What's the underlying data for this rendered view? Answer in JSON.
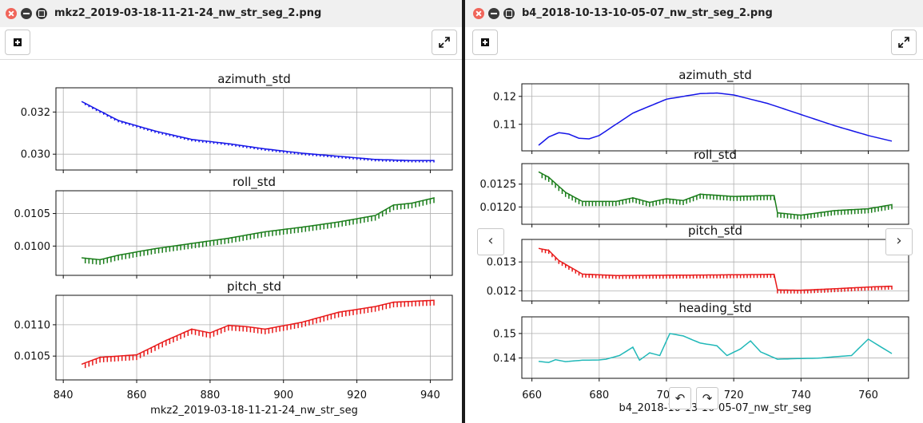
{
  "windows": [
    {
      "title": "mkz2_2019-03-18-11-21-24_nw_str_seg_2.png",
      "xlabel": "mkz2_2019-03-18-11-21-24_nw_str_seg",
      "xaxis": {
        "range": [
          838,
          946
        ],
        "ticks": [
          840,
          860,
          880,
          900,
          920,
          940
        ]
      },
      "subplots": [
        {
          "title": "azimuth_std",
          "color": "#1515e8",
          "ylim": [
            0.02925,
            0.03315
          ],
          "yticks": [
            0.03,
            0.032
          ],
          "ytick_labels": [
            "0.030",
            "0.032"
          ]
        },
        {
          "title": "roll_std",
          "color": "#1a7d1a",
          "ylim": [
            0.00955,
            0.01085
          ],
          "yticks": [
            0.01,
            0.0105
          ],
          "ytick_labels": [
            "0.0100",
            "0.0105"
          ]
        },
        {
          "title": "pitch_std",
          "color": "#e81a1a",
          "ylim": [
            0.01012,
            0.01147
          ],
          "yticks": [
            0.0105,
            0.011
          ],
          "ytick_labels": [
            "0.0105",
            "0.0110"
          ]
        }
      ]
    },
    {
      "title": "b4_2018-10-13-10-05-07_nw_str_seg_2.png",
      "xlabel": "b4_2018-10-13-10-05-07_nw_str_seg",
      "xaxis": {
        "range": [
          657,
          772
        ],
        "ticks": [
          660,
          680,
          700,
          720,
          740,
          760
        ]
      },
      "subplots": [
        {
          "title": "azimuth_std",
          "color": "#1515e8",
          "ylim": [
            0.1005,
            0.1245
          ],
          "yticks": [
            0.11,
            0.12
          ],
          "ytick_labels": [
            "0.11",
            "0.12"
          ]
        },
        {
          "title": "roll_std",
          "color": "#1a7d1a",
          "ylim": [
            0.01162,
            0.01295
          ],
          "yticks": [
            0.012,
            0.0125
          ],
          "ytick_labels": [
            "0.0120",
            "0.0125"
          ]
        },
        {
          "title": "pitch_std",
          "color": "#e81a1a",
          "ylim": [
            0.01165,
            0.01378
          ],
          "yticks": [
            0.012,
            0.013
          ],
          "ytick_labels": [
            "0.012",
            "0.013"
          ]
        },
        {
          "title": "heading_std",
          "color": "#20b8b8",
          "ylim": [
            0.1317,
            0.1568
          ],
          "yticks": [
            0.14,
            0.15
          ],
          "ytick_labels": [
            "0.14",
            "0.15"
          ]
        }
      ]
    }
  ],
  "chart_data": [
    {
      "type": "line",
      "title": "",
      "xlabel": "mkz2_2019-03-18-11-21-24_nw_str_seg",
      "xlim": [
        838,
        946
      ],
      "grid": true,
      "subplots": [
        {
          "title": "azimuth_std",
          "x": [
            845,
            855,
            865,
            875,
            885,
            895,
            905,
            915,
            925,
            935,
            941
          ],
          "y": [
            0.0325,
            0.0316,
            0.0311,
            0.0307,
            0.0305,
            0.03025,
            0.03005,
            0.0299,
            0.02975,
            0.0297,
            0.0297
          ]
        },
        {
          "title": "roll_std",
          "x": [
            845,
            850,
            855,
            865,
            875,
            885,
            895,
            905,
            915,
            925,
            930,
            935,
            941
          ],
          "y": [
            0.00982,
            0.00979,
            0.00986,
            0.00996,
            0.01004,
            0.01012,
            0.01022,
            0.01029,
            0.01037,
            0.01047,
            0.01063,
            0.01066,
            0.01074
          ]
        },
        {
          "title": "pitch_std",
          "x": [
            845,
            850,
            860,
            868,
            875,
            880,
            885,
            890,
            895,
            905,
            915,
            925,
            930,
            941
          ],
          "y": [
            0.01037,
            0.01048,
            0.01052,
            0.01075,
            0.01093,
            0.01087,
            0.01099,
            0.01097,
            0.01093,
            0.01104,
            0.0112,
            0.01129,
            0.01136,
            0.01139
          ]
        }
      ]
    },
    {
      "type": "line",
      "title": "",
      "xlabel": "b4_2018-10-13-10-05-07_nw_str_seg",
      "xlim": [
        657,
        772
      ],
      "grid": true,
      "subplots": [
        {
          "title": "azimuth_std",
          "x": [
            662,
            665,
            668,
            671,
            674,
            677,
            680,
            685,
            690,
            700,
            710,
            715,
            720,
            730,
            740,
            750,
            760,
            767
          ],
          "y": [
            0.1025,
            0.1055,
            0.107,
            0.1065,
            0.105,
            0.1048,
            0.106,
            0.11,
            0.114,
            0.119,
            0.121,
            0.1212,
            0.1205,
            0.1175,
            0.1135,
            0.1095,
            0.106,
            0.104
          ]
        },
        {
          "title": "roll_std",
          "x": [
            662,
            665,
            670,
            675,
            685,
            690,
            695,
            700,
            705,
            710,
            720,
            730,
            732,
            733,
            740,
            750,
            760,
            767
          ],
          "y": [
            0.01277,
            0.01265,
            0.01232,
            0.01212,
            0.01212,
            0.0122,
            0.0121,
            0.01218,
            0.01214,
            0.01228,
            0.01223,
            0.01225,
            0.01225,
            0.01187,
            0.01182,
            0.01192,
            0.01196,
            0.01205
          ]
        },
        {
          "title": "pitch_std",
          "x": [
            662,
            665,
            668,
            675,
            685,
            700,
            715,
            732,
            733,
            740,
            750,
            760,
            767
          ],
          "y": [
            0.01347,
            0.0134,
            0.01305,
            0.01258,
            0.01253,
            0.01254,
            0.01255,
            0.01257,
            0.01203,
            0.01202,
            0.01207,
            0.01213,
            0.01216
          ]
        },
        {
          "title": "heading_std",
          "x": [
            662,
            665,
            667,
            670,
            675,
            680,
            682,
            686,
            690,
            692,
            695,
            698,
            701,
            705,
            710,
            715,
            718,
            722,
            725,
            728,
            733,
            740,
            745,
            750,
            755,
            760,
            767
          ],
          "y": [
            0.1386,
            0.1382,
            0.1393,
            0.1385,
            0.1391,
            0.1392,
            0.1395,
            0.141,
            0.1444,
            0.1391,
            0.1421,
            0.141,
            0.15,
            0.149,
            0.1461,
            0.145,
            0.141,
            0.1437,
            0.147,
            0.1425,
            0.1395,
            0.1398,
            0.1399,
            0.1405,
            0.141,
            0.1477,
            0.1418
          ]
        }
      ]
    }
  ],
  "controls": {
    "prev": "‹",
    "next": "›",
    "rot_left": "↶",
    "rot_right": "↷"
  }
}
